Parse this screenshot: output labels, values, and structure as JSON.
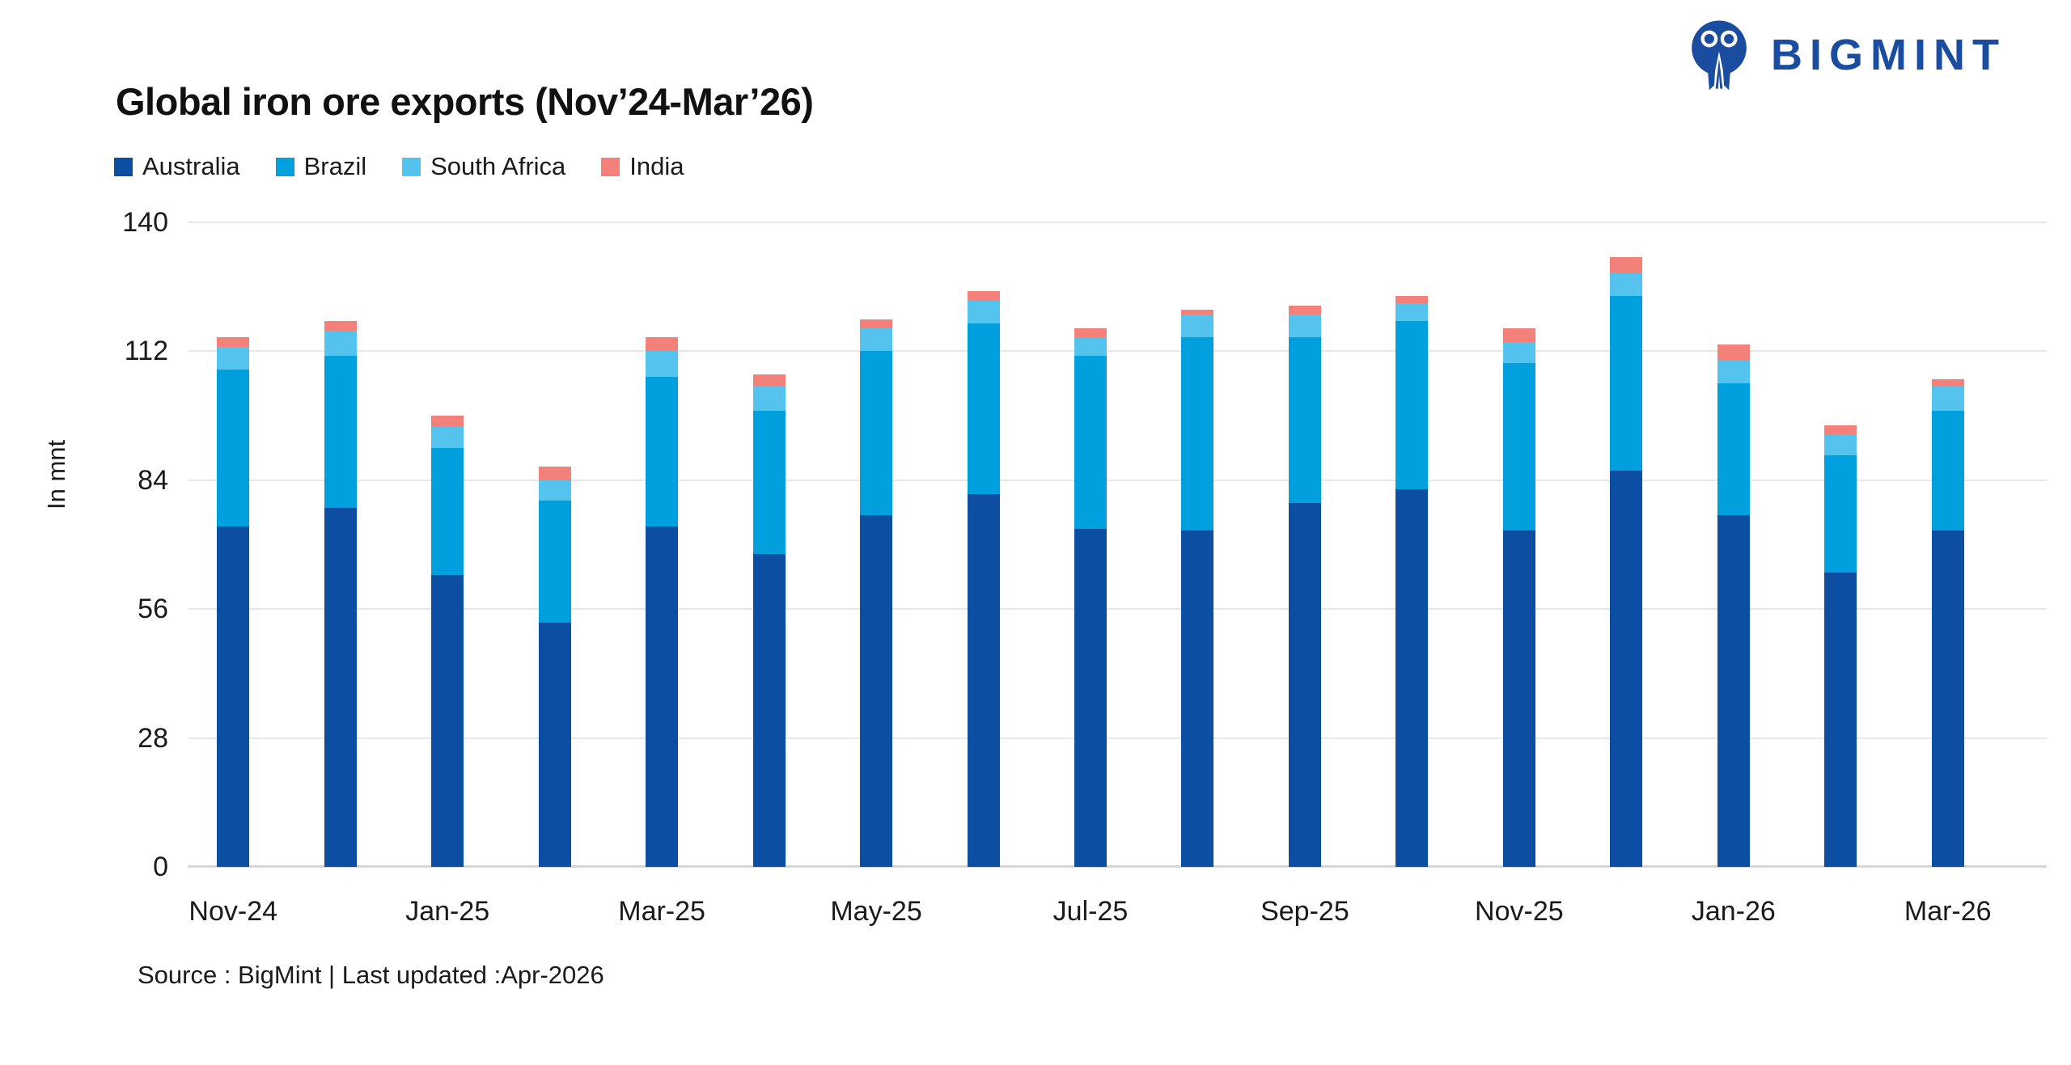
{
  "header": {
    "title": "Global iron ore exports (Nov’24-Mar’26)",
    "logo_text": "BIGMINT",
    "logo_color": "#1A4CA0"
  },
  "source_note": "Source : BigMint | Last updated :Apr-2026",
  "chart_data": {
    "type": "bar",
    "stacked": true,
    "title": "Global iron ore exports (Nov’24-Mar’26)",
    "ylabel": "In mnt",
    "xlabel": "",
    "ylim": [
      0,
      140
    ],
    "yticks": [
      0,
      28,
      56,
      84,
      112,
      140
    ],
    "grid": "horizontal",
    "legend_position": "top-left",
    "categories": [
      "Nov-24",
      "Dec-24",
      "Jan-25",
      "Feb-25",
      "Mar-25",
      "Apr-25",
      "May-25",
      "Jun-25",
      "Jul-25",
      "Aug-25",
      "Sep-25",
      "Oct-25",
      "Nov-25",
      "Dec-25",
      "Jan-26",
      "Feb-26",
      "Mar-26"
    ],
    "x_tick_labels_shown": [
      "Nov-24",
      "Jan-25",
      "Mar-25",
      "May-25",
      "Jul-25",
      "Sep-25",
      "Nov-25",
      "Jan-26",
      "Mar-26"
    ],
    "series": [
      {
        "name": "Australia",
        "color": "#0B4EA2",
        "values": [
          74,
          78,
          63.5,
          53,
          74,
          68,
          76.5,
          81,
          73.5,
          73,
          79,
          82,
          73,
          86,
          76.5,
          64,
          73
        ]
      },
      {
        "name": "Brazil",
        "color": "#00A0DF",
        "values": [
          34,
          33,
          27.5,
          26.5,
          32.5,
          31,
          35.5,
          37,
          37.5,
          42,
          36,
          36.5,
          36.5,
          38,
          28.5,
          25.5,
          26
        ]
      },
      {
        "name": "South Africa",
        "color": "#54C3EE",
        "values": [
          5,
          5.5,
          4.5,
          4.5,
          5.5,
          5.5,
          5,
          5,
          4,
          5,
          5,
          4,
          4.5,
          5,
          5,
          4.5,
          5.5
        ]
      },
      {
        "name": "India",
        "color": "#F4807A",
        "values": [
          2,
          2,
          2.5,
          3,
          3,
          2.5,
          2,
          2,
          2,
          1,
          2,
          1.5,
          3,
          3.5,
          3.5,
          2,
          1.5
        ]
      }
    ],
    "totals": [
      115,
      118.5,
      98,
      87,
      115,
      107,
      119,
      125,
      117,
      121,
      122,
      124,
      117,
      132.5,
      113.5,
      96,
      106
    ]
  }
}
